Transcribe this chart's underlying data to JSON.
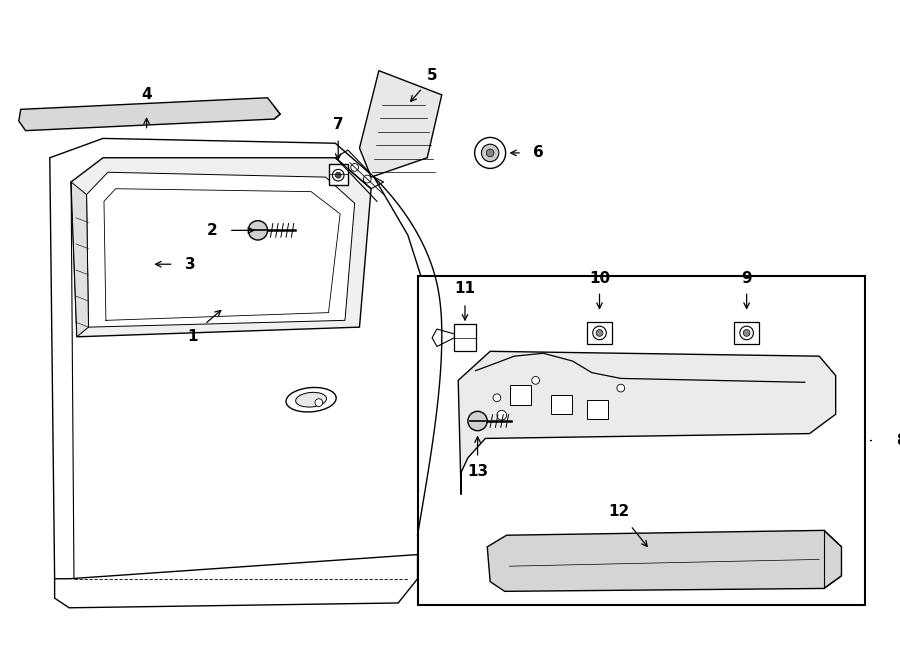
{
  "background_color": "#ffffff",
  "line_color": "#000000",
  "fig_width": 9.0,
  "fig_height": 6.62,
  "dpi": 100,
  "arrow_color": "#000000"
}
